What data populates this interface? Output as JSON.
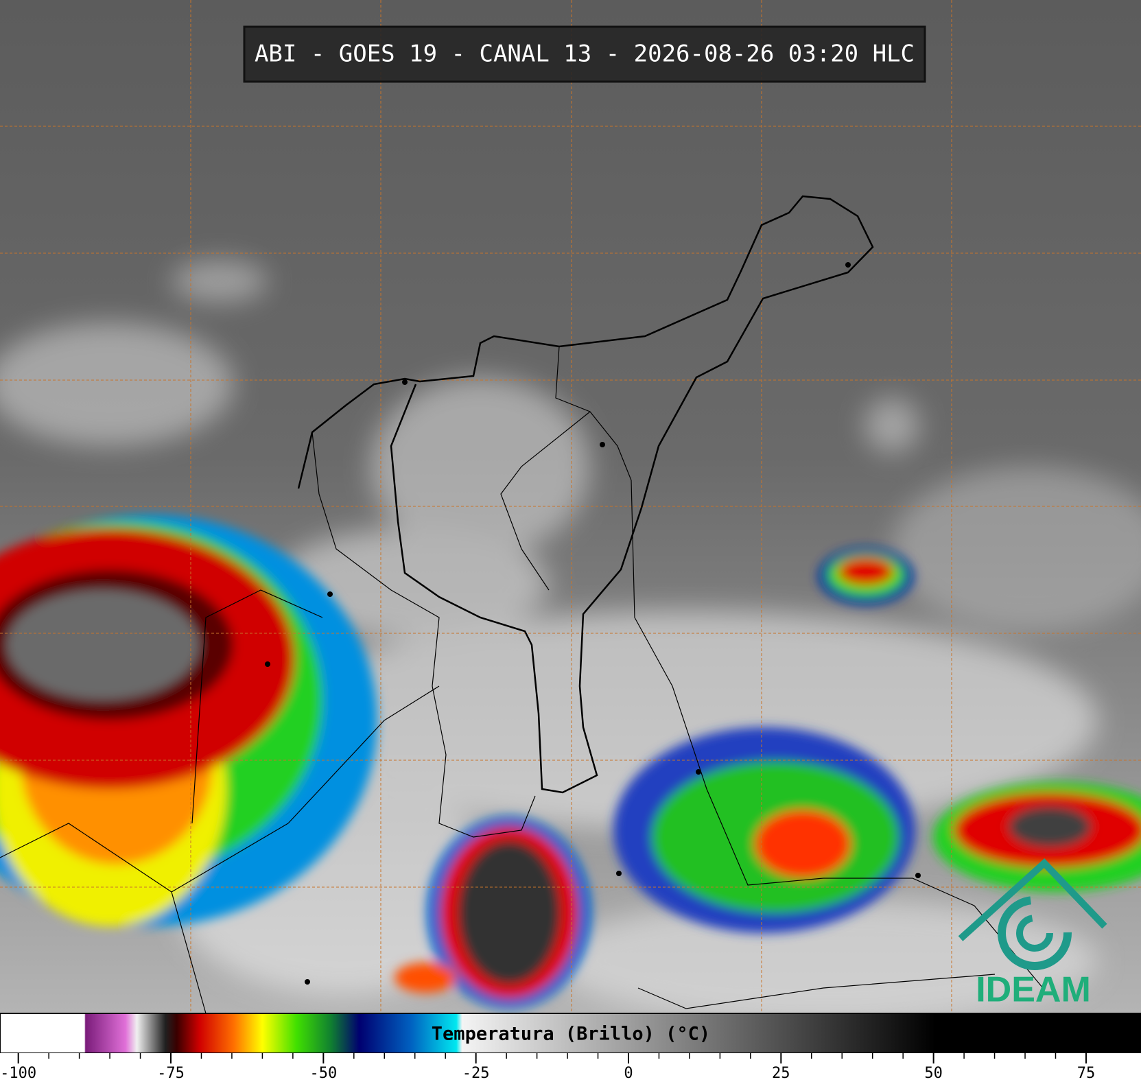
{
  "header": {
    "title": "ABI - GOES 19 - CANAL 13 - 2026-08-26 03:20 HLC"
  },
  "colorbar": {
    "label": "Temperatura (Brillo) (°C)",
    "xlim": [
      -103,
      84
    ],
    "ticks": [
      -100,
      -75,
      -50,
      -25,
      0,
      25,
      50,
      75
    ]
  },
  "logo": {
    "text": "IDEAM"
  }
}
